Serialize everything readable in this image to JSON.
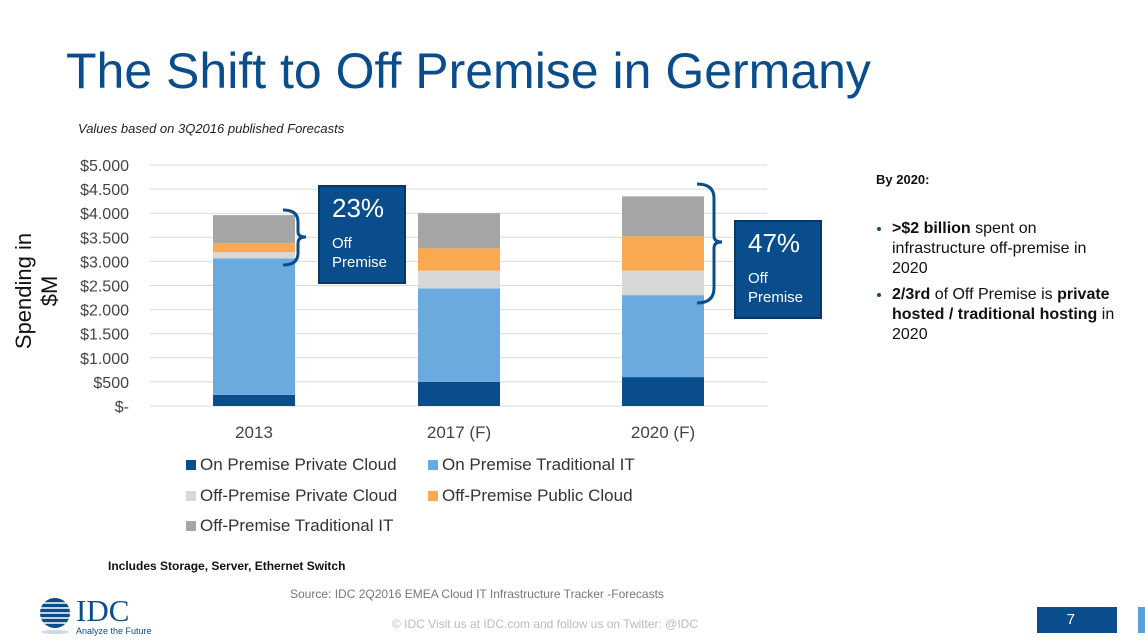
{
  "title": "The Shift to Off Premise in Germany",
  "subtitle": "Values based on 3Q2016 published  Forecasts",
  "chart_data": {
    "type": "bar",
    "stacked": true,
    "ylabel": "Spending in $M",
    "categories": [
      "2013",
      "2017 (F)",
      "2020 (F)"
    ],
    "ylim": [
      0,
      5000
    ],
    "yticks": [
      0,
      500,
      1000,
      1500,
      2000,
      2500,
      3000,
      3500,
      4000,
      4500,
      5000
    ],
    "ytick_labels": [
      "$-",
      "$500",
      "$1.000",
      "$1.500",
      "$2.000",
      "$2.500",
      "$3.000",
      "$3.500",
      "$4.000",
      "$4.500",
      "$5.000"
    ],
    "series": [
      {
        "name": "On Premise Private Cloud",
        "color": "#0a4d8c",
        "values": [
          230,
          500,
          600
        ]
      },
      {
        "name": "On Premise Traditional IT",
        "color": "#6aaadf",
        "values": [
          2830,
          1940,
          1700
        ]
      },
      {
        "name": "Off-Premise Private Cloud",
        "color": "#d8d8d8",
        "values": [
          130,
          370,
          510
        ]
      },
      {
        "name": "Off-Premise Public Cloud",
        "color": "#f9a94f",
        "values": [
          185,
          460,
          710
        ]
      },
      {
        "name": "Off-Premise Traditional IT",
        "color": "#a5a5a5",
        "values": [
          585,
          730,
          830
        ]
      }
    ],
    "grid": true,
    "legend": "bottom"
  },
  "callouts": [
    {
      "pct": "23%",
      "label": "Off Premise"
    },
    {
      "pct": "47%",
      "label": "Off Premise"
    }
  ],
  "side": {
    "heading": "By 2020:",
    "b1_bold": ">$2 billion",
    "b1_rest": " spent on infrastructure off-premise in 2020",
    "b2_bold1": "2/3rd",
    "b2_mid": " of Off Premise is ",
    "b2_bold2": "private hosted / traditional hosting",
    "b2_rest": " in 2020"
  },
  "includes": "Includes Storage, Server, Ethernet Switch",
  "source": "Source: IDC  2Q2016 EMEA Cloud IT Infrastructure Tracker -Forecasts",
  "footer": "© IDC   Visit us at IDC.com and follow us on Twitter: @IDC",
  "logo": {
    "name": "IDC",
    "tagline": "Analyze the Future"
  },
  "page": "7"
}
